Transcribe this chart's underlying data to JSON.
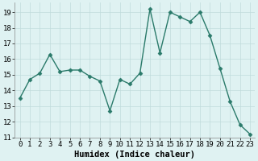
{
  "x": [
    0,
    1,
    2,
    3,
    4,
    5,
    6,
    7,
    8,
    9,
    10,
    11,
    12,
    13,
    14,
    15,
    16,
    17,
    18,
    19,
    20,
    21,
    22,
    23
  ],
  "y": [
    13.5,
    14.7,
    15.1,
    16.3,
    15.2,
    15.3,
    15.3,
    14.9,
    14.6,
    12.7,
    14.7,
    14.4,
    15.1,
    19.2,
    16.4,
    19.0,
    18.7,
    18.4,
    19.0,
    17.5,
    15.4,
    13.3,
    11.8,
    11.2
  ],
  "line_color": "#2a7a6a",
  "marker_color": "#2a7a6a",
  "bg_color": "#dff2f2",
  "grid_color": "#c0dcdc",
  "xlabel": "Humidex (Indice chaleur)",
  "xlim": [
    -0.5,
    23.5
  ],
  "ylim": [
    11,
    19.6
  ],
  "yticks": [
    11,
    12,
    13,
    14,
    15,
    16,
    17,
    18,
    19
  ],
  "xticks": [
    0,
    1,
    2,
    3,
    4,
    5,
    6,
    7,
    8,
    9,
    10,
    11,
    12,
    13,
    14,
    15,
    16,
    17,
    18,
    19,
    20,
    21,
    22,
    23
  ],
  "xlabel_fontsize": 7.5,
  "tick_fontsize": 6.5,
  "line_width": 1.0,
  "marker_size": 2.5
}
